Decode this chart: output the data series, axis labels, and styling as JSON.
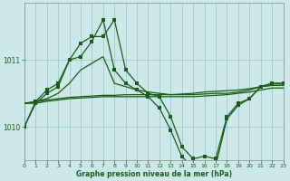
{
  "background_color": "#cce8e8",
  "grid_color": "#aacccc",
  "line_color": "#1a5c1a",
  "xlabel": "Graphe pression niveau de la mer (hPa)",
  "xlim": [
    0,
    23
  ],
  "ylim": [
    1009.5,
    1011.85
  ],
  "yticks": [
    1010,
    1011
  ],
  "xticks": [
    0,
    1,
    2,
    3,
    4,
    5,
    6,
    7,
    8,
    9,
    10,
    11,
    12,
    13,
    14,
    15,
    16,
    17,
    18,
    19,
    20,
    21,
    22,
    23
  ],
  "series": [
    {
      "x": [
        0,
        1,
        2,
        3,
        4,
        5,
        6,
        7,
        8,
        9,
        10,
        11,
        12,
        13,
        14,
        15,
        16,
        17,
        18,
        19,
        20,
        21,
        22,
        23
      ],
      "y": [
        1010.35,
        1010.35,
        1010.38,
        1010.4,
        1010.42,
        1010.43,
        1010.44,
        1010.45,
        1010.45,
        1010.45,
        1010.45,
        1010.45,
        1010.45,
        1010.45,
        1010.45,
        1010.45,
        1010.46,
        1010.47,
        1010.48,
        1010.5,
        1010.52,
        1010.55,
        1010.58,
        1010.58
      ],
      "marker": false
    },
    {
      "x": [
        0,
        1,
        2,
        3,
        4,
        5,
        6,
        7,
        8,
        9,
        10,
        11,
        12,
        13,
        14,
        15,
        16,
        17,
        18,
        19,
        20,
        21,
        22,
        23
      ],
      "y": [
        1010.35,
        1010.37,
        1010.4,
        1010.42,
        1010.44,
        1010.45,
        1010.46,
        1010.47,
        1010.47,
        1010.48,
        1010.48,
        1010.48,
        1010.48,
        1010.48,
        1010.49,
        1010.5,
        1010.52,
        1010.53,
        1010.54,
        1010.55,
        1010.57,
        1010.6,
        1010.62,
        1010.62
      ],
      "marker": false
    },
    {
      "x": [
        0,
        1,
        2,
        3,
        4,
        5,
        6,
        7,
        8,
        9,
        10,
        11,
        12,
        13,
        14,
        15,
        16,
        17,
        18,
        19,
        20,
        21,
        22,
        23
      ],
      "y": [
        1010.35,
        1010.38,
        1010.42,
        1010.5,
        1010.65,
        1010.85,
        1010.95,
        1011.05,
        1010.65,
        1010.6,
        1010.55,
        1010.52,
        1010.5,
        1010.48,
        1010.48,
        1010.48,
        1010.49,
        1010.5,
        1010.5,
        1010.52,
        1010.55,
        1010.6,
        1010.62,
        1010.62
      ],
      "marker": false
    },
    {
      "x": [
        0,
        1,
        2,
        3,
        4,
        5,
        6,
        7,
        8,
        9,
        10,
        11,
        12,
        13,
        14,
        15,
        16,
        17,
        18,
        19,
        20,
        21,
        22,
        23
      ],
      "y": [
        1010.0,
        1010.35,
        1010.5,
        1010.6,
        1011.0,
        1011.25,
        1011.35,
        1011.35,
        1011.6,
        1010.85,
        1010.65,
        1010.5,
        1010.45,
        1010.15,
        1009.7,
        1009.52,
        1009.56,
        1009.52,
        1010.15,
        1010.35,
        1010.42,
        1010.6,
        1010.65,
        1010.65
      ],
      "marker": true
    },
    {
      "x": [
        0,
        1,
        2,
        3,
        4,
        5,
        6,
        7,
        8,
        9,
        10,
        11,
        12,
        13,
        14,
        15,
        16,
        17,
        18,
        19,
        20,
        21,
        22,
        23
      ],
      "y": [
        1010.0,
        1010.38,
        1010.55,
        1010.65,
        1011.0,
        1011.05,
        1011.28,
        1011.6,
        1010.85,
        1010.65,
        1010.55,
        1010.45,
        1010.28,
        1009.95,
        1009.55,
        1009.4,
        1009.44,
        1009.42,
        1010.12,
        1010.32,
        1010.42,
        1010.6,
        1010.65,
        1010.65
      ],
      "marker": true
    }
  ]
}
